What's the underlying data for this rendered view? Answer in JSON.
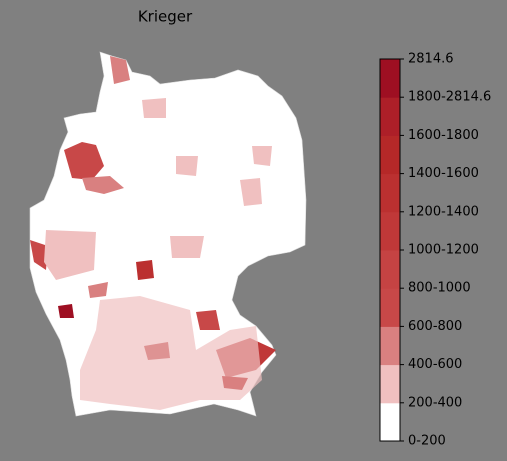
{
  "title": "Krieger",
  "colorbar": {
    "labels": [
      "0-200",
      "200-400",
      "400-600",
      "600-800",
      "800-1000",
      "1000-1200",
      "1200-1400",
      "1400-1600",
      "1600-1800",
      "1800-2814.6",
      "2814.6"
    ],
    "colors": [
      "#ffffff",
      "#f0c0c0",
      "#d98080",
      "#c84848",
      "#c54343",
      "#c03838",
      "#bb3030",
      "#b52828",
      "#ad1f28",
      "#9e0f22"
    ]
  }
}
